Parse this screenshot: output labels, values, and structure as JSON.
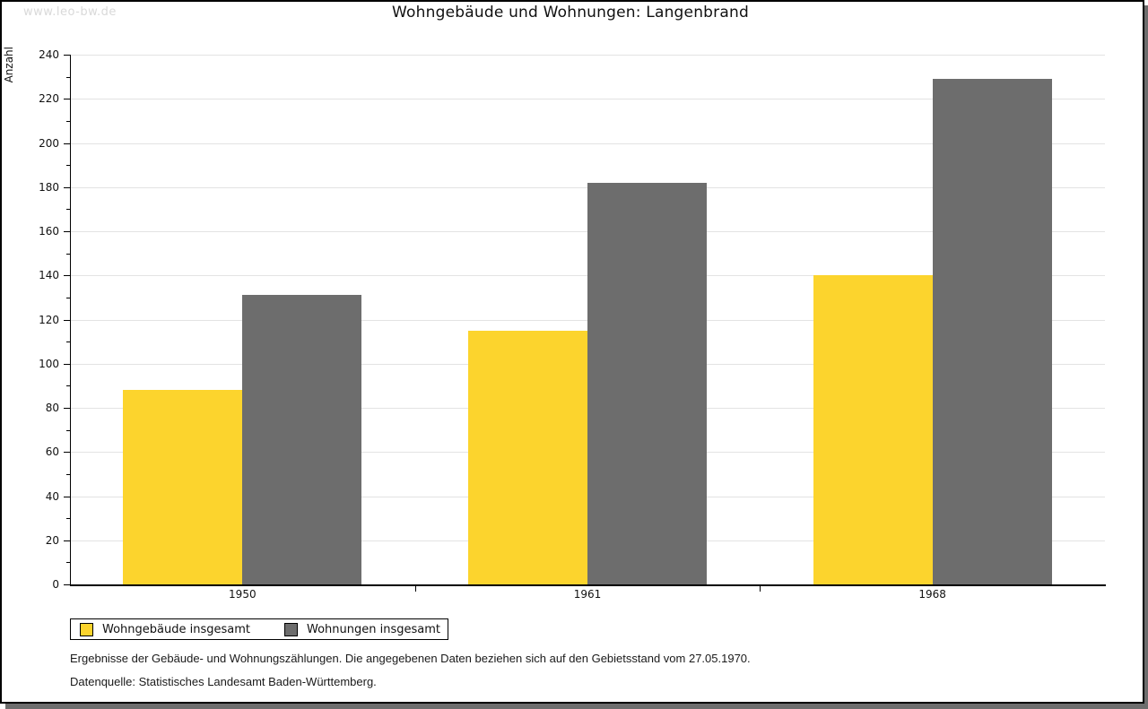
{
  "watermark": "www.leo-bw.de",
  "chart_data": {
    "type": "bar",
    "title": "Wohngebäude und Wohnungen: Langenbrand",
    "xlabel": "",
    "ylabel": "Anzahl",
    "categories": [
      "1950",
      "1961",
      "1968"
    ],
    "series": [
      {
        "name": "Wohngebäude insgesamt",
        "key": "wohngebaeude-insgesamt",
        "color": "#fcd42d",
        "values": [
          88,
          115,
          140
        ]
      },
      {
        "name": "Wohnungen insgesamt",
        "key": "wohnungen-insgesamt",
        "color": "#6d6d6d",
        "values": [
          131,
          182,
          229
        ]
      }
    ],
    "ylim": [
      0,
      240
    ],
    "ytick_step": 20,
    "yminor_tick_step": 10,
    "grid": true,
    "legend_position": "bottom-left"
  },
  "footnotes": [
    "Ergebnisse der Gebäude- und Wohnungszählungen. Die angegebenen Daten beziehen sich auf den Gebietsstand vom 27.05.1970.",
    "Datenquelle: Statistisches Landesamt Baden-Württemberg."
  ],
  "colors": {
    "bar_yellow": "#fcd42d",
    "bar_gray": "#6d6d6d",
    "gridline": "#e3e3e3",
    "frame_shadow": "#6d6d6d",
    "watermark": "#d9d9d9"
  }
}
